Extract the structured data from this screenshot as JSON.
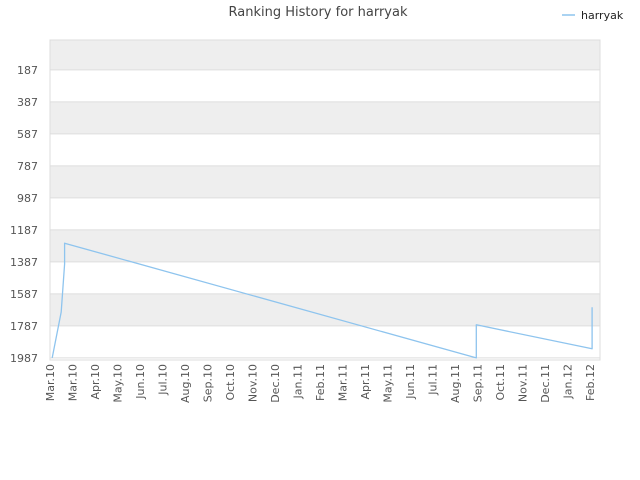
{
  "chart_data": {
    "type": "line",
    "title": "Ranking History for harryak",
    "xlabel": "",
    "ylabel": "",
    "y_inverted": true,
    "ylim": [
      2000,
      0
    ],
    "y_ticks": [
      187,
      387,
      587,
      787,
      987,
      1187,
      1387,
      1587,
      1787,
      1987
    ],
    "x_categories": [
      "Mar.10",
      "Mar.10",
      "Apr.10",
      "May.10",
      "Jun.10",
      "Jul.10",
      "Aug.10",
      "Sep.10",
      "Oct.10",
      "Nov.10",
      "Dec.10",
      "Jan.11",
      "Feb.11",
      "Mar.11",
      "Apr.11",
      "May.11",
      "Jun.11",
      "Jul.11",
      "Aug.11",
      "Sep.11",
      "Oct.11",
      "Nov.11",
      "Dec.11",
      "Jan.12",
      "Feb.12"
    ],
    "grid": true,
    "legend_position": "top-right",
    "series": [
      {
        "name": "harryak",
        "color": "#8ec4ee",
        "points": [
          {
            "x": 0.1,
            "y": 1987
          },
          {
            "x": 0.5,
            "y": 1700
          },
          {
            "x": 0.65,
            "y": 1400
          },
          {
            "x": 0.65,
            "y": 1270
          },
          {
            "x": 18.95,
            "y": 1987
          },
          {
            "x": 18.95,
            "y": 1780
          },
          {
            "x": 24.1,
            "y": 1930
          },
          {
            "x": 24.1,
            "y": 1670
          }
        ]
      }
    ]
  }
}
